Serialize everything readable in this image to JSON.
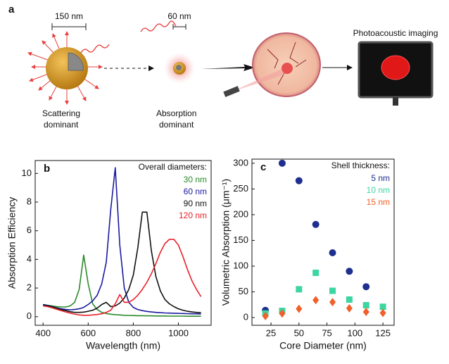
{
  "panel_a": {
    "label": "a",
    "scale_large": "150 nm",
    "scale_small": "60 nm",
    "imaging": "Photoacoustic imaging",
    "left_caption": [
      "Scattering",
      "dominant"
    ],
    "right_caption": [
      "Absorption",
      "dominant"
    ]
  },
  "chart_data": [
    {
      "type": "line",
      "panel_label": "b",
      "x_label": "Wavelength (nm)",
      "y_label": "Absorption Efficiency",
      "legend_title": "Overall diameters:",
      "legend": "upper right",
      "x": [
        400,
        420,
        440,
        460,
        480,
        500,
        520,
        540,
        560,
        580,
        600,
        620,
        640,
        660,
        680,
        700,
        720,
        740,
        760,
        780,
        800,
        820,
        840,
        860,
        880,
        900,
        920,
        940,
        960,
        980,
        1000,
        1020,
        1040,
        1060,
        1080,
        1100
      ],
      "series": [
        {
          "name": "30 nm",
          "color": "#2a8a2a",
          "values": [
            0.85,
            0.8,
            0.75,
            0.7,
            0.68,
            0.68,
            0.75,
            1.0,
            1.9,
            4.3,
            2.3,
            0.9,
            0.5,
            0.3,
            0.22,
            0.17,
            0.14,
            0.12,
            0.1,
            0.09,
            0.08,
            0.07,
            0.07,
            0.06,
            0.06,
            0.05,
            0.05,
            0.05,
            0.04,
            0.04,
            0.04,
            0.04,
            0.03,
            0.03,
            0.03,
            0.03
          ]
        },
        {
          "name": "60 nm",
          "color": "#1a1aa0",
          "values": [
            0.85,
            0.78,
            0.7,
            0.62,
            0.55,
            0.5,
            0.48,
            0.5,
            0.55,
            0.65,
            0.85,
            1.1,
            1.5,
            2.3,
            3.8,
            7.5,
            10.4,
            5.0,
            2.0,
            1.0,
            0.65,
            0.5,
            0.42,
            0.37,
            0.33,
            0.3,
            0.28,
            0.26,
            0.25,
            0.24,
            0.23,
            0.22,
            0.21,
            0.2,
            0.2,
            0.19
          ]
        },
        {
          "name": "90 nm",
          "color": "#111111",
          "values": [
            0.8,
            0.75,
            0.7,
            0.6,
            0.5,
            0.42,
            0.35,
            0.3,
            0.3,
            0.32,
            0.38,
            0.45,
            0.6,
            0.85,
            1.0,
            0.7,
            0.75,
            0.95,
            1.3,
            1.9,
            2.9,
            4.8,
            7.3,
            7.3,
            4.6,
            2.8,
            1.8,
            1.2,
            0.9,
            0.7,
            0.55,
            0.45,
            0.38,
            0.33,
            0.3,
            0.28
          ]
        },
        {
          "name": "120 nm",
          "color": "#e8222a",
          "values": [
            0.75,
            0.7,
            0.62,
            0.52,
            0.42,
            0.33,
            0.25,
            0.18,
            0.12,
            0.1,
            0.1,
            0.12,
            0.15,
            0.2,
            0.3,
            0.45,
            0.9,
            1.55,
            1.0,
            1.0,
            1.2,
            1.5,
            1.9,
            2.4,
            3.0,
            3.7,
            4.5,
            5.1,
            5.4,
            5.4,
            5.0,
            4.2,
            3.3,
            2.5,
            1.9,
            1.4
          ]
        }
      ],
      "xlim": [
        365,
        1145
      ],
      "ylim": [
        -0.6,
        10.9
      ],
      "xticks": [
        400,
        600,
        800,
        1000
      ],
      "yticks": [
        0,
        2,
        4,
        6,
        8,
        10
      ]
    },
    {
      "type": "scatter",
      "panel_label": "c",
      "x_label": "Core Diameter (nm)",
      "y_label": "Volumetric Absorption  (μm⁻¹)",
      "legend_title": "Shell thickness:",
      "legend": "upper right",
      "x": [
        20,
        35,
        50,
        65,
        80,
        95,
        110,
        125
      ],
      "series": [
        {
          "name": "5 nm",
          "color": "#1f2f8f",
          "marker": "circle",
          "values": [
            14,
            300,
            266,
            181,
            126,
            90,
            60,
            null
          ]
        },
        {
          "name": "10 nm",
          "color": "#3dd6a0",
          "marker": "square",
          "values": [
            8,
            13,
            55,
            87,
            52,
            35,
            24,
            21
          ]
        },
        {
          "name": "15 nm",
          "color": "#f0602a",
          "marker": "diamond",
          "values": [
            3,
            8,
            17,
            34,
            30,
            18,
            11,
            9
          ]
        }
      ],
      "xlim": [
        8,
        135
      ],
      "ylim": [
        -15,
        308
      ],
      "xticks": [
        25,
        50,
        75,
        100,
        125
      ],
      "yticks": [
        0,
        50,
        100,
        150,
        200,
        250,
        300
      ]
    }
  ]
}
